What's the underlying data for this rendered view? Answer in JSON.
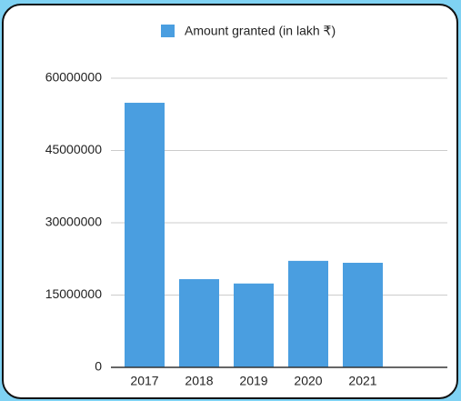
{
  "chart_data": {
    "type": "bar",
    "legend": "Amount granted (in lakh ₹)",
    "categories": [
      "2017",
      "2018",
      "2019",
      "2020",
      "2021"
    ],
    "values": [
      54900000,
      18300000,
      17400000,
      22100000,
      21700000
    ],
    "color": "#4a9ee0",
    "ylim": [
      0,
      60000000
    ],
    "yticks": [
      0,
      15000000,
      30000000,
      45000000,
      60000000
    ],
    "grid": true
  }
}
